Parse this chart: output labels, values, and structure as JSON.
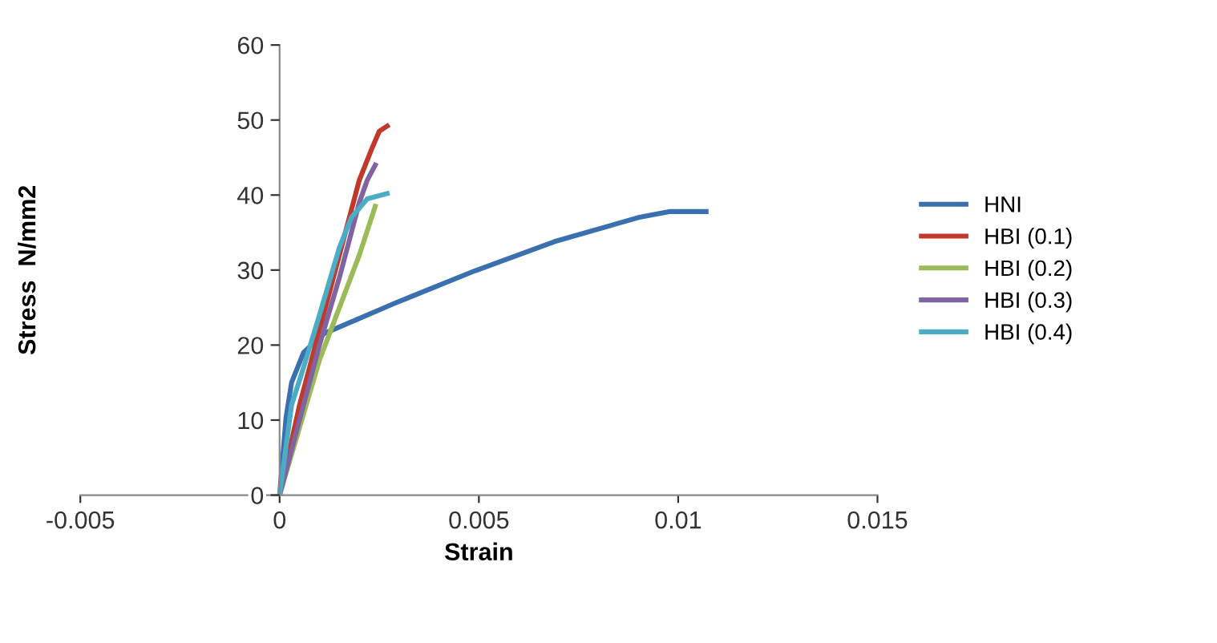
{
  "chart_data": {
    "type": "line",
    "xlabel": "Strain",
    "ylabel": "Stress  N/mm2",
    "xlim": [
      -0.005,
      0.015
    ],
    "xticks": [
      {
        "value": -0.005,
        "label": "-0.005"
      },
      {
        "value": 0,
        "label": "0"
      },
      {
        "value": 0.005,
        "label": "0.005"
      },
      {
        "value": 0.01,
        "label": "0.01"
      },
      {
        "value": 0.015,
        "label": "0.015"
      }
    ],
    "ylim": [
      0,
      60
    ],
    "yticks": [
      0,
      10,
      20,
      30,
      40,
      50,
      60
    ],
    "grid": false,
    "legend": "right",
    "marker": "none",
    "line_style": "solid",
    "series": [
      {
        "name": "HNI",
        "color": "#3a6fb0",
        "x": [
          0,
          0.00016,
          0.0003,
          0.0006,
          0.0011,
          0.0029,
          0.0049,
          0.0069,
          0.009,
          0.0098,
          0.0107
        ],
        "values": [
          0,
          10.3,
          15,
          19,
          21.5,
          25.6,
          29.9,
          33.8,
          37,
          37.8,
          37.8
        ]
      },
      {
        "name": "HBI (0.1)",
        "color": "#c0392b",
        "x": [
          0,
          0.0005,
          0.001,
          0.0015,
          0.002,
          0.0023,
          0.0025,
          0.0027
        ],
        "values": [
          0,
          12,
          22,
          32,
          42,
          46,
          48.5,
          49.2
        ]
      },
      {
        "name": "HBI (0.2)",
        "color": "#9bbb59",
        "x": [
          0,
          0.0005,
          0.001,
          0.0015,
          0.002,
          0.0024
        ],
        "values": [
          0,
          9,
          18,
          25,
          32,
          38.5
        ]
      },
      {
        "name": "HBI (0.3)",
        "color": "#8064a2",
        "x": [
          0,
          0.0005,
          0.001,
          0.0015,
          0.002,
          0.0022,
          0.0024
        ],
        "values": [
          0,
          10,
          20,
          29,
          39,
          42,
          44
        ]
      },
      {
        "name": "HBI (0.4)",
        "color": "#4bacc6",
        "x": [
          0,
          0.0003,
          0.0006,
          0.001,
          0.0015,
          0.0018,
          0.0022,
          0.0027
        ],
        "values": [
          0,
          12,
          17,
          24,
          33,
          37,
          39.5,
          40.2
        ]
      }
    ]
  }
}
